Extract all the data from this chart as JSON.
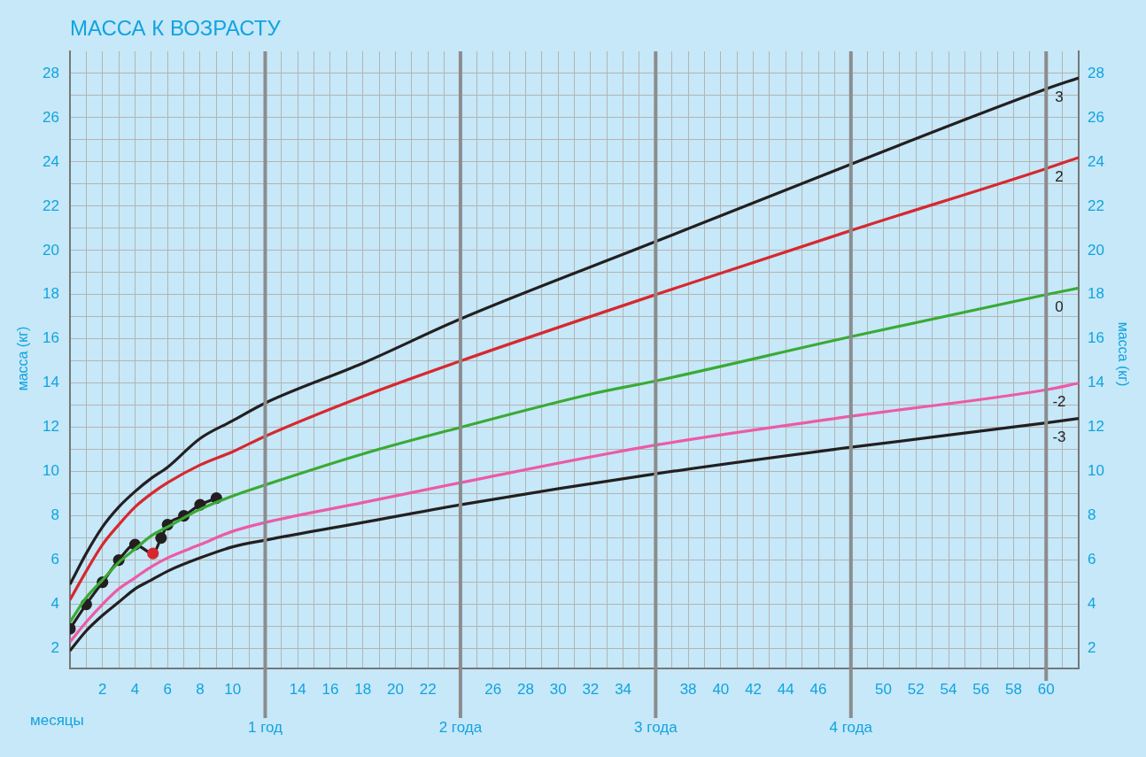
{
  "chart_data": {
    "type": "line",
    "title": "МАССА К ВОЗРАСТУ",
    "xlabel": "месяцы",
    "ylabel": "масса (кг)",
    "y2label": "масса (кг)",
    "legend": false,
    "grid": true,
    "xlim": [
      0,
      62
    ],
    "ylim": [
      1.1,
      29
    ],
    "y2lim": [
      1.1,
      29
    ],
    "xticks": [
      {
        "value": 1,
        "label": null
      },
      2,
      {
        "value": 3,
        "label": null
      },
      4,
      {
        "value": 5,
        "label": null
      },
      6,
      {
        "value": 7,
        "label": null
      },
      8,
      {
        "value": 9,
        "label": null
      },
      10,
      {
        "value": 11,
        "label": null
      },
      {
        "value": 13,
        "label": null
      },
      14,
      {
        "value": 15,
        "label": null
      },
      16,
      {
        "value": 17,
        "label": null
      },
      18,
      {
        "value": 19,
        "label": null
      },
      20,
      {
        "value": 21,
        "label": null
      },
      22,
      {
        "value": 23,
        "label": null
      },
      {
        "value": 25,
        "label": null
      },
      26,
      {
        "value": 27,
        "label": null
      },
      28,
      {
        "value": 29,
        "label": null
      },
      30,
      {
        "value": 31,
        "label": null
      },
      32,
      {
        "value": 33,
        "label": null
      },
      34,
      {
        "value": 35,
        "label": null
      },
      {
        "value": 37,
        "label": null
      },
      38,
      {
        "value": 39,
        "label": null
      },
      40,
      {
        "value": 41,
        "label": null
      },
      42,
      {
        "value": 43,
        "label": null
      },
      44,
      {
        "value": 45,
        "label": null
      },
      46,
      {
        "value": 47,
        "label": null
      },
      {
        "value": 49,
        "label": null
      },
      50,
      {
        "value": 51,
        "label": null
      },
      52,
      {
        "value": 53,
        "label": null
      },
      54,
      {
        "value": 55,
        "label": null
      },
      56,
      {
        "value": 57,
        "label": null
      },
      58,
      {
        "value": 59,
        "label": null
      },
      60,
      {
        "value": 61,
        "label": null
      }
    ],
    "yticks": [
      2,
      {
        "value": 3,
        "label": null
      },
      4,
      {
        "value": 5,
        "label": null
      },
      6,
      {
        "value": 7,
        "label": null
      },
      8,
      {
        "value": 9,
        "label": null
      },
      10,
      {
        "value": 11,
        "label": null
      },
      12,
      {
        "value": 13,
        "label": null
      },
      14,
      {
        "value": 15,
        "label": null
      },
      16,
      {
        "value": 17,
        "label": null
      },
      18,
      {
        "value": 19,
        "label": null
      },
      20,
      {
        "value": 21,
        "label": null
      },
      22,
      {
        "value": 23,
        "label": null
      },
      24,
      {
        "value": 25,
        "label": null
      },
      26,
      {
        "value": 27,
        "label": null
      },
      28
    ],
    "y2ticks": [
      2,
      4,
      6,
      8,
      10,
      12,
      14,
      16,
      18,
      20,
      22,
      24,
      26,
      28
    ],
    "ref_lines": [
      {
        "axis": "x",
        "value": 12,
        "label": "1 год",
        "color": "#8c8c8c"
      },
      {
        "axis": "x",
        "value": 24,
        "label": "2 года",
        "color": "#8c8c8c"
      },
      {
        "axis": "x",
        "value": 36,
        "label": "3 года",
        "color": "#8c8c8c"
      },
      {
        "axis": "x",
        "value": 48,
        "label": "4 года",
        "color": "#8c8c8c"
      },
      {
        "axis": "x",
        "value": 60,
        "color": "#8c8c8c"
      }
    ],
    "series": [
      {
        "name": "3",
        "color": "#231f20",
        "marker": "none",
        "x": [
          0,
          1,
          2,
          3,
          4,
          5,
          6,
          8,
          10,
          12,
          18,
          24,
          36,
          48,
          60,
          62
        ],
        "values": [
          4.9,
          6.3,
          7.5,
          8.4,
          9.1,
          9.7,
          10.2,
          11.5,
          12.3,
          13.1,
          14.9,
          16.9,
          20.4,
          23.9,
          27.3,
          27.8
        ]
      },
      {
        "name": "2",
        "color": "#d7282f",
        "marker": "none",
        "x": [
          0,
          1,
          2,
          3,
          4,
          5,
          6,
          8,
          10,
          12,
          18,
          24,
          36,
          48,
          60,
          62
        ],
        "values": [
          4.2,
          5.5,
          6.7,
          7.6,
          8.4,
          9.0,
          9.5,
          10.3,
          10.9,
          11.6,
          13.4,
          15.0,
          18.0,
          20.9,
          23.7,
          24.2
        ]
      },
      {
        "name": "0",
        "color": "#3aaa35",
        "marker": "none",
        "x": [
          0,
          1,
          2,
          3,
          4,
          5,
          6,
          8,
          10,
          12,
          18,
          24,
          32,
          36,
          48,
          60,
          62
        ],
        "values": [
          3.2,
          4.3,
          5.1,
          5.9,
          6.5,
          7.1,
          7.5,
          8.3,
          8.9,
          9.4,
          10.8,
          12.0,
          13.5,
          14.1,
          16.1,
          18.0,
          18.3
        ]
      },
      {
        "name": "-2",
        "color": "#ec5ba5",
        "marker": "none",
        "x": [
          0,
          1,
          2,
          3,
          4,
          5,
          6,
          8,
          10,
          12,
          18,
          24,
          36,
          48,
          60,
          62
        ],
        "values": [
          2.3,
          3.2,
          4.0,
          4.7,
          5.2,
          5.7,
          6.1,
          6.7,
          7.3,
          7.7,
          8.6,
          9.5,
          11.2,
          12.5,
          13.7,
          14.0
        ]
      },
      {
        "name": "-3",
        "color": "#231f20",
        "marker": "none",
        "x": [
          0,
          1,
          2,
          3,
          4,
          5,
          6,
          8,
          10,
          12,
          18,
          24,
          36,
          48,
          60,
          62
        ],
        "values": [
          1.9,
          2.8,
          3.5,
          4.1,
          4.7,
          5.1,
          5.5,
          6.1,
          6.6,
          6.9,
          7.7,
          8.5,
          9.9,
          11.1,
          12.2,
          12.4
        ]
      },
      {
        "color": "#231f20",
        "marker": "circle",
        "x": [
          0,
          1,
          2,
          3,
          4,
          5.1,
          5.6,
          6,
          7,
          8,
          9
        ],
        "values": [
          2.9,
          4.0,
          5.0,
          6.0,
          6.7,
          6.3,
          7.0,
          7.6,
          8.0,
          8.5,
          8.8
        ],
        "colors": [
          "#231f20",
          "#231f20",
          "#231f20",
          "#231f20",
          "#231f20",
          "#d7282f",
          "#231f20",
          "#231f20",
          "#231f20",
          "#231f20",
          "#231f20"
        ]
      }
    ]
  }
}
